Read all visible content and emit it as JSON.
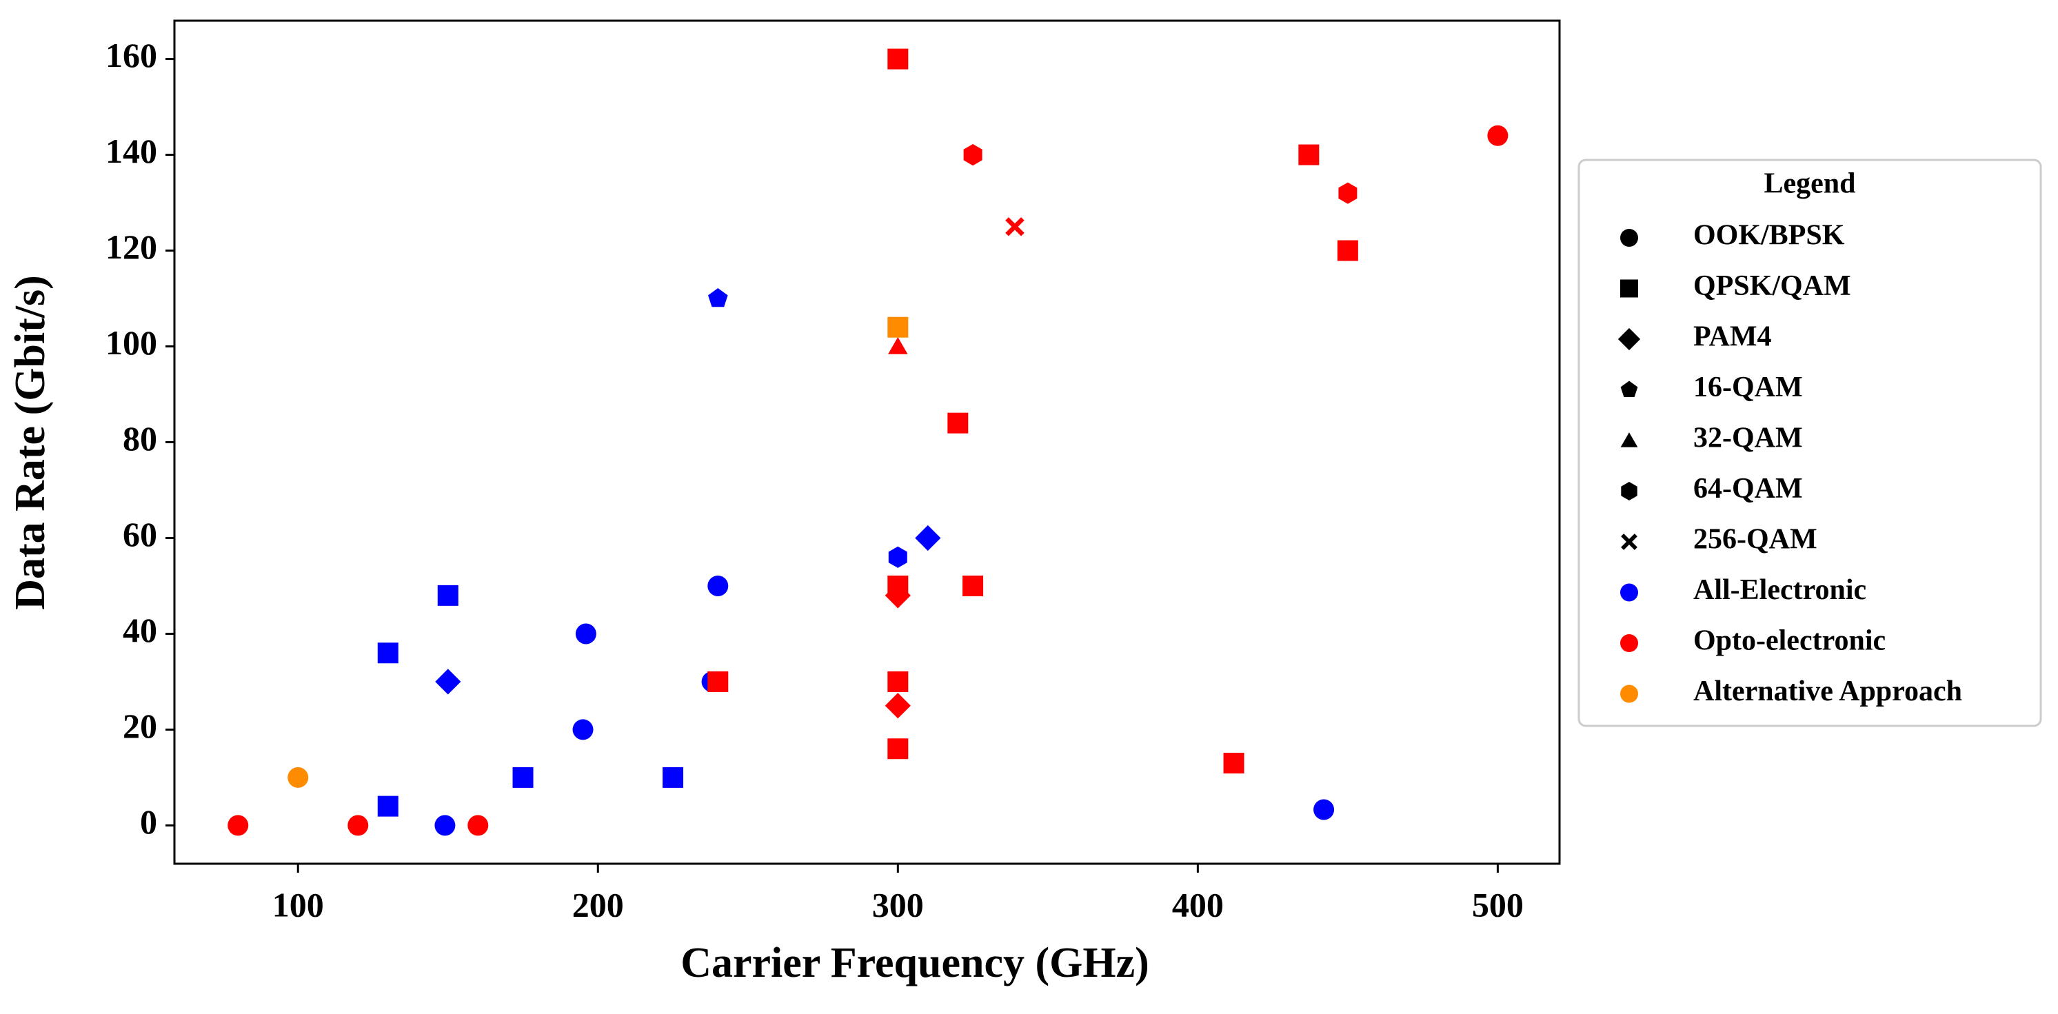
{
  "chart_data": {
    "type": "scatter",
    "x_label": "Carrier Frequency (GHz)",
    "y_label": "Data Rate (Gbit/s)",
    "xlim": [
      58.8,
      520.6
    ],
    "xticks": [
      100,
      200,
      300,
      400,
      500
    ],
    "ylim": [
      -8,
      168
    ],
    "yticks": [
      0,
      20,
      40,
      60,
      80,
      100,
      120,
      140,
      160
    ],
    "legend_title": "Legend",
    "legend_position": "right",
    "marker_types": [
      {
        "name": "OOK/BPSK",
        "shape": "circle"
      },
      {
        "name": "QPSK/QAM",
        "shape": "square"
      },
      {
        "name": "PAM4",
        "shape": "diamond"
      },
      {
        "name": "16-QAM",
        "shape": "pentagon"
      },
      {
        "name": "32-QAM",
        "shape": "triangle"
      },
      {
        "name": "64-QAM",
        "shape": "hexagon"
      },
      {
        "name": "256-QAM",
        "shape": "x"
      }
    ],
    "series": [
      {
        "name": "All-Electronic",
        "color": "#0000ff",
        "x": [
          149,
          195,
          196,
          240,
          442,
          238,
          130,
          130,
          150,
          175,
          225,
          150,
          310,
          240,
          300
        ],
        "values": [
          0,
          20,
          40,
          50,
          3.3,
          30,
          4,
          36,
          48,
          10,
          10,
          30,
          60,
          110,
          56
        ],
        "markers": [
          "circle",
          "circle",
          "circle",
          "circle",
          "circle",
          "circle",
          "square",
          "square",
          "square",
          "square",
          "square",
          "diamond",
          "diamond",
          "pentagon",
          "hexagon"
        ]
      },
      {
        "name": "Opto-electronic",
        "color": "#ff0000",
        "x": [
          80,
          120,
          160,
          500,
          300,
          437,
          450,
          320,
          300,
          325,
          300,
          240,
          300,
          412,
          300,
          300,
          325,
          450,
          300,
          339
        ],
        "values": [
          0,
          0,
          0,
          144,
          160,
          140,
          120,
          84,
          50,
          50,
          30,
          30,
          16,
          13,
          48,
          25,
          140,
          132,
          100,
          125
        ],
        "markers": [
          "circle",
          "circle",
          "circle",
          "circle",
          "square",
          "square",
          "square",
          "square",
          "square",
          "square",
          "square",
          "square",
          "square",
          "square",
          "diamond",
          "diamond",
          "hexagon",
          "hexagon",
          "triangle",
          "x"
        ]
      },
      {
        "name": "Alternative Approach",
        "color": "#ff8c00",
        "x": [
          100,
          300
        ],
        "values": [
          10,
          104
        ],
        "markers": [
          "circle",
          "square"
        ]
      }
    ]
  }
}
